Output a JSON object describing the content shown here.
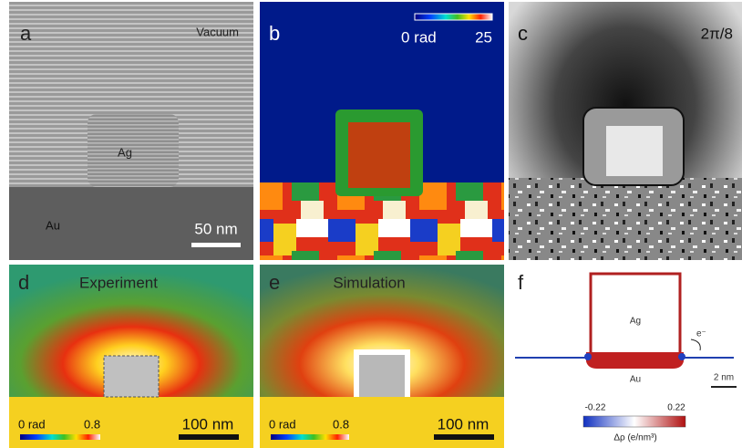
{
  "panels": [
    {
      "label": "a",
      "texts": [
        "Vacuum",
        "Ag",
        "Au"
      ],
      "scale_bar": "50 nm"
    },
    {
      "label": "b",
      "colorbar": [
        "0 rad",
        "25"
      ]
    },
    {
      "label": "c",
      "annotation": "2π/8"
    },
    {
      "label": "d",
      "title": "Experiment",
      "colorbar": [
        "0 rad",
        "0.8"
      ],
      "scale_bar": "100 nm"
    },
    {
      "label": "e",
      "title": "Simulation",
      "colorbar": [
        "0 rad",
        "0.8"
      ],
      "scale_bar": "100 nm"
    },
    {
      "label": "f",
      "texts": [
        "Ag",
        "Au",
        "e⁻",
        "2 nm"
      ],
      "colorbar": [
        "-0.22",
        "0.22"
      ],
      "colorbar_label": "Δρ (e/nm³)"
    }
  ]
}
